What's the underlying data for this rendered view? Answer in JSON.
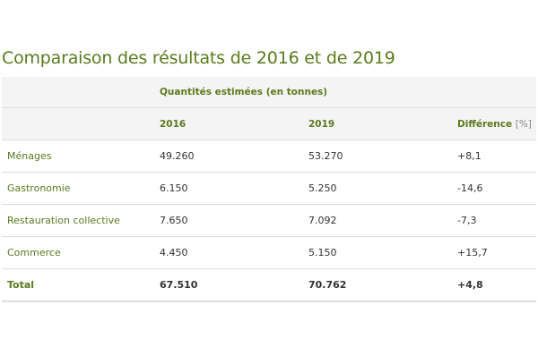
{
  "title": "Comparaison des résultats de 2016 et de 2019",
  "table": {
    "group_header": "Quantités estimées (en tonnes)",
    "col_2016": "2016",
    "col_2019": "2019",
    "col_diff": "Différence",
    "col_diff_unit": "[%]",
    "rows": [
      {
        "label": "Ménages",
        "v2016": "49.260",
        "v2019": "53.270",
        "diff": "+8,1"
      },
      {
        "label": "Gastronomie",
        "v2016": "6.150",
        "v2019": "5.250",
        "diff": "-14,6"
      },
      {
        "label": "Restauration collective",
        "v2016": "7.650",
        "v2019": "7.092",
        "diff": "-7,3"
      },
      {
        "label": "Commerce",
        "v2016": "4.450",
        "v2019": "5.150",
        "diff": "+15,7"
      }
    ],
    "total": {
      "label": "Total",
      "v2016": "67.510",
      "v2019": "70.762",
      "diff": "+4,8"
    }
  }
}
